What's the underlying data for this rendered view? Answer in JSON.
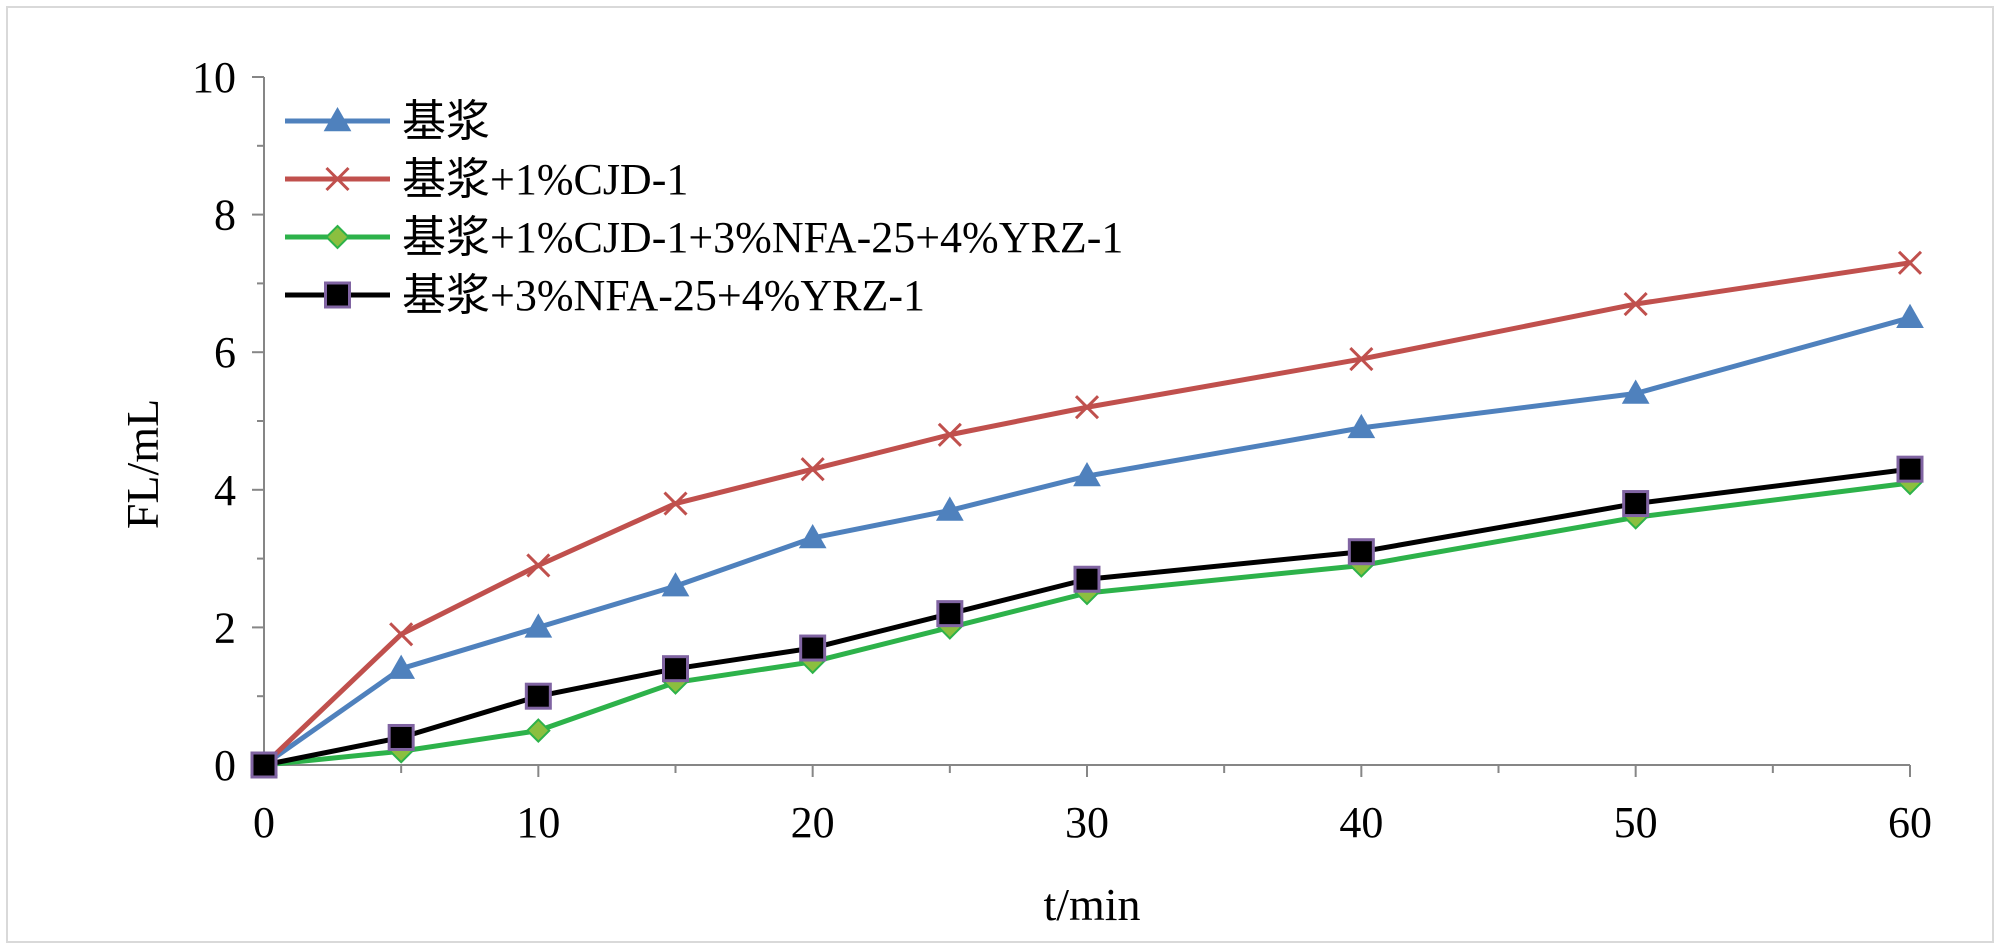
{
  "chart_data": {
    "type": "line",
    "title": "",
    "xlabel": "t/min",
    "ylabel": "FL/mL",
    "x": [
      0,
      5,
      10,
      15,
      20,
      25,
      30,
      40,
      50,
      60
    ],
    "xlim": [
      0,
      60
    ],
    "ylim": [
      0,
      10
    ],
    "x_major_ticks": [
      0,
      10,
      20,
      30,
      40,
      50,
      60
    ],
    "x_minor_ticks": [
      5,
      15,
      25,
      35,
      45,
      55
    ],
    "y_ticks": [
      0,
      2,
      4,
      6,
      8,
      10
    ],
    "y_minor_ticks": [
      1,
      3,
      5,
      7,
      9
    ],
    "grid": false,
    "legend_position": "top-left",
    "series": [
      {
        "name": "基浆",
        "color": "#4f81bd",
        "marker": "triangle",
        "values": [
          0,
          1.4,
          2.0,
          2.6,
          3.3,
          3.7,
          4.2,
          4.9,
          5.4,
          6.5
        ]
      },
      {
        "name": "基浆+1%CJD-1",
        "color": "#c0504d",
        "marker": "x",
        "values": [
          0,
          1.9,
          2.9,
          3.8,
          4.3,
          4.8,
          5.2,
          5.9,
          6.7,
          7.3
        ]
      },
      {
        "name": "基浆+1%CJD-1+3%NFA-25+4%YRZ-1",
        "color": "#2db24a",
        "marker": "diamond",
        "marker_fill": "#8bbf3f",
        "values": [
          0,
          0.2,
          0.5,
          1.2,
          1.5,
          2.0,
          2.5,
          2.9,
          3.6,
          4.1
        ]
      },
      {
        "name": "基浆+3%NFA-25+4%YRZ-1",
        "color": "#000000",
        "marker": "square",
        "marker_edge": "#8064a2",
        "values": [
          0,
          0.4,
          1.0,
          1.4,
          1.7,
          2.2,
          2.7,
          3.1,
          3.8,
          4.3
        ]
      }
    ]
  }
}
